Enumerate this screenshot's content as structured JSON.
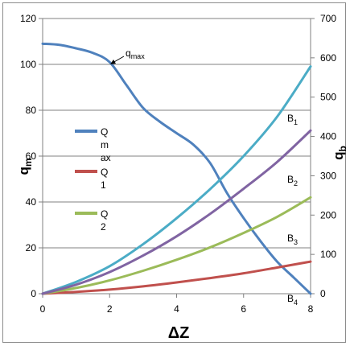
{
  "chart_data": {
    "type": "line",
    "title": "",
    "xlabel": "ΔZ",
    "ylabel_left": "q",
    "ylabel_left_sub": "m",
    "ylabel_right": "q",
    "ylabel_right_sub": "b",
    "xlim": [
      0,
      8
    ],
    "ylim_left": [
      0,
      120
    ],
    "ylim_right": [
      0,
      700
    ],
    "x_ticks": [
      "0",
      "2",
      "4",
      "6",
      "8"
    ],
    "y_left_ticks": [
      "0",
      "20",
      "40",
      "60",
      "80",
      "100",
      "120"
    ],
    "y_right_ticks": [
      "0",
      "100",
      "200",
      "300",
      "400",
      "500",
      "600",
      "700"
    ],
    "grid": "horizontal",
    "legend_position": "left-middle",
    "series": [
      {
        "name": "Qmax",
        "legend_lines": [
          "Q",
          "m",
          "ax"
        ],
        "axis": "left",
        "color": "#4f81bd",
        "x": [
          0,
          0.5,
          1,
          1.5,
          2,
          2.5,
          3,
          3.5,
          4,
          4.5,
          5,
          5.5,
          6,
          6.5,
          7,
          7.5,
          8
        ],
        "y": [
          109,
          108.5,
          107,
          105,
          101,
          91,
          81,
          75,
          70,
          65,
          57,
          44,
          33,
          23,
          14,
          7,
          0
        ]
      },
      {
        "name": "Q1",
        "legend_lines": [
          "Q",
          "1"
        ],
        "axis": "left",
        "color": "#c0504d",
        "x": [
          0,
          1,
          2,
          3,
          4,
          5,
          6,
          7,
          8
        ],
        "y": [
          0,
          0.8,
          1.8,
          3.2,
          4.9,
          6.8,
          8.9,
          11.4,
          14
        ]
      },
      {
        "name": "Q2",
        "legend_lines": [
          "Q",
          "2"
        ],
        "axis": "left",
        "color": "#9bbb59",
        "x": [
          0,
          1,
          2,
          3,
          4,
          5,
          6,
          7,
          8
        ],
        "y": [
          0,
          2.5,
          5.8,
          10,
          14.8,
          20.2,
          26.5,
          33.5,
          42
        ]
      },
      {
        "name": "B1",
        "axis": "right",
        "color": "#4bacc6",
        "x": [
          0,
          1,
          2,
          3,
          4,
          5,
          6,
          7,
          8
        ],
        "y": [
          0,
          30,
          70,
          126,
          192,
          266,
          350,
          450,
          578
        ]
      },
      {
        "name": "B2",
        "axis": "right",
        "color": "#8064a2",
        "x": [
          0,
          1,
          2,
          3,
          4,
          5,
          6,
          7,
          8
        ],
        "y": [
          0,
          23,
          55,
          97,
          146,
          203,
          267,
          335,
          415
        ]
      }
    ],
    "annotations": [
      {
        "label": "q",
        "sub": "max"
      },
      {
        "label": "B",
        "sub": "1"
      },
      {
        "label": "B",
        "sub": "2"
      },
      {
        "label": "B",
        "sub": "3"
      },
      {
        "label": "B",
        "sub": "4"
      }
    ]
  }
}
